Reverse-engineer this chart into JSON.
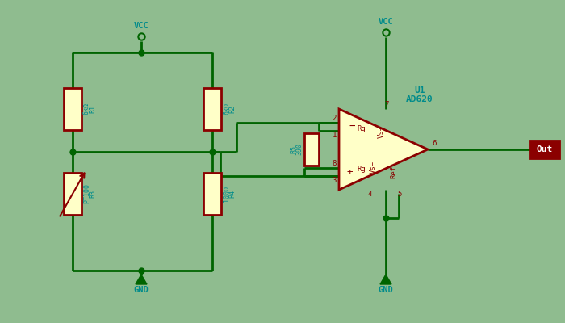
{
  "bg_color": "#8FBC8F",
  "wire_color": "#006400",
  "comp_color": "#8B0000",
  "text_color": "#008B8B",
  "res_fill": "#FFFFC8",
  "tri_fill": "#FFFFC8",
  "lw": 2.0,
  "vcc_label": "VCC",
  "gnd_label": "GND",
  "r1_val": "6kΩ",
  "r1_name": "R1",
  "r2_val": "6kΩ",
  "r2_name": "R2",
  "r3_val": "PT100",
  "r3_name": "R3",
  "r4_val": "100Ω",
  "r4_name": "R4",
  "r5_val": "390",
  "r5_name": "R5",
  "u1_line1": "U1",
  "u1_line2": "AD620",
  "pin2_lbl": "2",
  "pin1_lbl": "1",
  "pin8_lbl": "8",
  "pin3_lbl": "3",
  "pin4_lbl": "4",
  "pin5_lbl": "5",
  "pin6_lbl": "6",
  "pin7_lbl": "7",
  "rg_lbl": "Rg",
  "minus_lbl": "−",
  "plus_lbl": "+",
  "vs_plus_lbl": "Vs+",
  "vs_minus_lbl": "Vs−",
  "ref_lbl": "Ref",
  "out_lbl": "Out"
}
